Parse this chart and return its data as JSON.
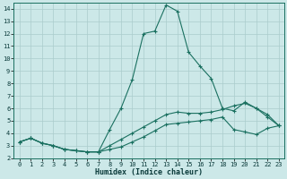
{
  "xlabel": "Humidex (Indice chaleur)",
  "background_color": "#cce8e8",
  "line_color": "#1a7060",
  "grid_color": "#aacccc",
  "xlim": [
    -0.5,
    23.5
  ],
  "ylim": [
    2,
    14.5
  ],
  "xticks": [
    0,
    1,
    2,
    3,
    4,
    5,
    6,
    7,
    8,
    9,
    10,
    11,
    12,
    13,
    14,
    15,
    16,
    17,
    18,
    19,
    20,
    21,
    22,
    23
  ],
  "yticks": [
    2,
    3,
    4,
    5,
    6,
    7,
    8,
    9,
    10,
    11,
    12,
    13,
    14
  ],
  "line_peak_x": [
    0,
    1,
    2,
    3,
    4,
    5,
    6,
    7,
    8,
    9,
    10,
    11,
    12,
    13,
    14,
    15,
    16,
    17,
    18,
    19,
    20,
    21,
    22,
    23
  ],
  "line_peak_y": [
    3.3,
    3.6,
    3.2,
    3.0,
    2.7,
    2.6,
    2.5,
    2.5,
    4.3,
    6.0,
    8.3,
    12.0,
    12.2,
    14.3,
    13.8,
    10.5,
    9.4,
    8.4,
    6.0,
    5.8,
    6.5,
    6.0,
    5.3,
    4.6
  ],
  "line_upper_x": [
    0,
    1,
    2,
    3,
    4,
    5,
    6,
    7,
    8,
    9,
    10,
    11,
    12,
    13,
    14,
    15,
    16,
    17,
    18,
    19,
    20,
    21,
    22,
    23
  ],
  "line_upper_y": [
    3.3,
    3.6,
    3.2,
    3.0,
    2.7,
    2.6,
    2.5,
    2.5,
    3.0,
    3.5,
    4.0,
    4.5,
    5.0,
    5.5,
    5.7,
    5.6,
    5.6,
    5.7,
    5.9,
    6.2,
    6.4,
    6.0,
    5.5,
    4.6
  ],
  "line_lower_x": [
    0,
    1,
    2,
    3,
    4,
    5,
    6,
    7,
    8,
    9,
    10,
    11,
    12,
    13,
    14,
    15,
    16,
    17,
    18,
    19,
    20,
    21,
    22,
    23
  ],
  "line_lower_y": [
    3.3,
    3.6,
    3.2,
    3.0,
    2.7,
    2.6,
    2.5,
    2.5,
    2.7,
    2.9,
    3.3,
    3.7,
    4.2,
    4.7,
    4.8,
    4.9,
    5.0,
    5.1,
    5.3,
    4.3,
    4.1,
    3.9,
    4.4,
    4.6
  ]
}
